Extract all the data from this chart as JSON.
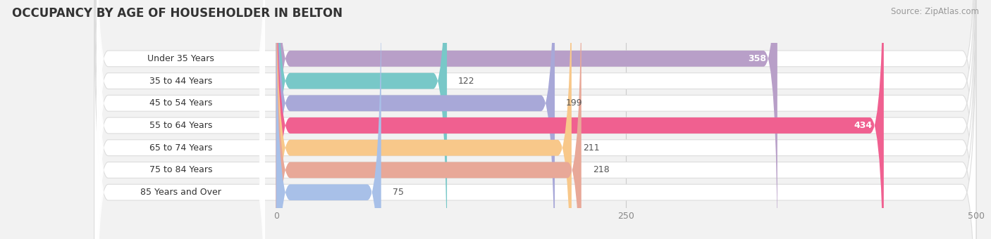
{
  "title": "OCCUPANCY BY AGE OF HOUSEHOLDER IN BELTON",
  "source": "Source: ZipAtlas.com",
  "categories": [
    "Under 35 Years",
    "35 to 44 Years",
    "45 to 54 Years",
    "55 to 64 Years",
    "65 to 74 Years",
    "75 to 84 Years",
    "85 Years and Over"
  ],
  "values": [
    358,
    122,
    199,
    434,
    211,
    218,
    75
  ],
  "bar_colors": [
    "#b89fc8",
    "#78c8c8",
    "#a8a8d8",
    "#f06090",
    "#f8c88a",
    "#e8a898",
    "#a8c0e8"
  ],
  "xlim": [
    0,
    500
  ],
  "xticks": [
    0,
    250,
    500
  ],
  "bar_height": 0.72,
  "figsize": [
    14.06,
    3.4
  ],
  "dpi": 100,
  "bg_color": "#f2f2f2",
  "bar_bg_color": "#ffffff",
  "bar_bg_border": "#dddddd",
  "title_fontsize": 12,
  "label_fontsize": 9,
  "value_fontsize": 9,
  "source_fontsize": 8.5,
  "label_pill_color": "#ffffff",
  "x_axis_start": 0
}
